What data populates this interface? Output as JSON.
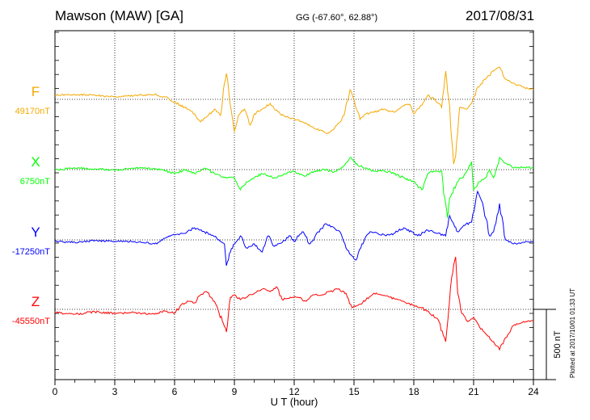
{
  "header": {
    "station": "Mawson (MAW)  [GA]",
    "coords": "GG (-67.60°,  62.88°)",
    "date": "2017/08/31"
  },
  "plotted_note": "Plotted at 2017/10/01 01:33 UT",
  "scale_label": "500 nT",
  "chart_data": {
    "type": "line",
    "xlabel": "U T (hour)",
    "xlim": [
      0,
      24
    ],
    "xticks": [
      0,
      3,
      6,
      9,
      12,
      15,
      18,
      21,
      24
    ],
    "grid": true,
    "series": [
      {
        "name": "F",
        "baseline": "49170nT",
        "color": "#f5a800",
        "points": [
          [
            0,
            5
          ],
          [
            1,
            6
          ],
          [
            2,
            5
          ],
          [
            3,
            3
          ],
          [
            4,
            5
          ],
          [
            5,
            6
          ],
          [
            5.5,
            3
          ],
          [
            6,
            -3
          ],
          [
            6.5,
            -10
          ],
          [
            7,
            -18
          ],
          [
            7.3,
            -28
          ],
          [
            7.6,
            -22
          ],
          [
            8,
            -12
          ],
          [
            8.3,
            -20
          ],
          [
            8.5,
            20
          ],
          [
            8.6,
            32
          ],
          [
            8.8,
            -8
          ],
          [
            9,
            -40
          ],
          [
            9.2,
            -20
          ],
          [
            9.5,
            -12
          ],
          [
            9.8,
            -32
          ],
          [
            10,
            -18
          ],
          [
            10.4,
            -12
          ],
          [
            10.8,
            -5
          ],
          [
            11,
            -12
          ],
          [
            11.3,
            -18
          ],
          [
            11.6,
            -22
          ],
          [
            12,
            -24
          ],
          [
            12.4,
            -28
          ],
          [
            12.7,
            -32
          ],
          [
            13,
            -36
          ],
          [
            13.3,
            -38
          ],
          [
            13.6,
            -42
          ],
          [
            13.9,
            -38
          ],
          [
            14.2,
            -30
          ],
          [
            14.5,
            -20
          ],
          [
            14.8,
            12
          ],
          [
            15,
            0
          ],
          [
            15.3,
            -25
          ],
          [
            15.6,
            -18
          ],
          [
            16,
            -16
          ],
          [
            16.5,
            -12
          ],
          [
            17,
            -16
          ],
          [
            17.5,
            -8
          ],
          [
            17.8,
            -6
          ],
          [
            18,
            -18
          ],
          [
            18.3,
            -10
          ],
          [
            18.7,
            5
          ],
          [
            19.1,
            -2
          ],
          [
            19.4,
            -10
          ],
          [
            19.6,
            35
          ],
          [
            19.8,
            -10
          ],
          [
            19.9,
            -50
          ],
          [
            20,
            -80
          ],
          [
            20.1,
            -70
          ],
          [
            20.3,
            -10
          ],
          [
            20.6,
            -12
          ],
          [
            20.9,
            -5
          ],
          [
            21.2,
            15
          ],
          [
            21.6,
            25
          ],
          [
            22,
            35
          ],
          [
            22.3,
            40
          ],
          [
            22.6,
            25
          ],
          [
            23,
            20
          ],
          [
            23.5,
            15
          ],
          [
            24,
            12
          ]
        ]
      },
      {
        "name": "X",
        "baseline": "6750nT",
        "color": "#00ff00",
        "points": [
          [
            0,
            0
          ],
          [
            1,
            2
          ],
          [
            2,
            1
          ],
          [
            3,
            -1
          ],
          [
            4,
            2
          ],
          [
            5,
            1
          ],
          [
            5.5,
            -1
          ],
          [
            6,
            -5
          ],
          [
            6.5,
            0
          ],
          [
            7,
            -5
          ],
          [
            7.5,
            2
          ],
          [
            8,
            -5
          ],
          [
            8.5,
            -10
          ],
          [
            9,
            -10
          ],
          [
            9.3,
            -25
          ],
          [
            9.6,
            -15
          ],
          [
            10,
            -10
          ],
          [
            10.4,
            -5
          ],
          [
            11,
            -10
          ],
          [
            11.5,
            -5
          ],
          [
            12,
            -2
          ],
          [
            12.5,
            -8
          ],
          [
            13,
            -2
          ],
          [
            13.5,
            0
          ],
          [
            14,
            -3
          ],
          [
            14.5,
            5
          ],
          [
            14.8,
            15
          ],
          [
            15.2,
            5
          ],
          [
            15.6,
            2
          ],
          [
            16,
            -2
          ],
          [
            16.5,
            -1
          ],
          [
            17,
            -5
          ],
          [
            17.5,
            -10
          ],
          [
            18,
            -15
          ],
          [
            18.4,
            -25
          ],
          [
            18.7,
            -5
          ],
          [
            19,
            -2
          ],
          [
            19.4,
            -2
          ],
          [
            19.5,
            -30
          ],
          [
            19.7,
            -60
          ],
          [
            19.8,
            -35
          ],
          [
            19.9,
            -30
          ],
          [
            20.2,
            -15
          ],
          [
            20.6,
            -5
          ],
          [
            20.9,
            10
          ],
          [
            21,
            -25
          ],
          [
            21.3,
            -15
          ],
          [
            21.6,
            -10
          ],
          [
            21.8,
            0
          ],
          [
            22,
            -10
          ],
          [
            22.3,
            15
          ],
          [
            22.6,
            8
          ],
          [
            23,
            2
          ],
          [
            23.5,
            3
          ],
          [
            24,
            2
          ]
        ]
      },
      {
        "name": "Y",
        "baseline": "-17250nT",
        "color": "#0000ff",
        "points": [
          [
            0,
            -2
          ],
          [
            1,
            -3
          ],
          [
            2,
            -1
          ],
          [
            3,
            -2
          ],
          [
            4,
            -2
          ],
          [
            5,
            -5
          ],
          [
            5.5,
            2
          ],
          [
            6,
            6
          ],
          [
            6.5,
            8
          ],
          [
            7,
            15
          ],
          [
            7.5,
            10
          ],
          [
            8,
            4
          ],
          [
            8.5,
            -5
          ],
          [
            8.6,
            -32
          ],
          [
            8.8,
            -15
          ],
          [
            9,
            -5
          ],
          [
            9.3,
            5
          ],
          [
            9.6,
            -10
          ],
          [
            10,
            -5
          ],
          [
            10.4,
            -15
          ],
          [
            10.7,
            5
          ],
          [
            11,
            -8
          ],
          [
            11.4,
            -3
          ],
          [
            11.8,
            5
          ],
          [
            12,
            -2
          ],
          [
            12.4,
            10
          ],
          [
            12.8,
            -5
          ],
          [
            13.2,
            10
          ],
          [
            13.6,
            20
          ],
          [
            14,
            15
          ],
          [
            14.3,
            10
          ],
          [
            14.6,
            -10
          ],
          [
            14.9,
            -20
          ],
          [
            15.1,
            -25
          ],
          [
            15.4,
            -5
          ],
          [
            15.8,
            10
          ],
          [
            16.2,
            8
          ],
          [
            16.6,
            5
          ],
          [
            17,
            8
          ],
          [
            17.5,
            15
          ],
          [
            17.9,
            10
          ],
          [
            18.2,
            5
          ],
          [
            18.7,
            12
          ],
          [
            19.2,
            8
          ],
          [
            19.6,
            5
          ],
          [
            19.8,
            30
          ],
          [
            20,
            20
          ],
          [
            20.2,
            10
          ],
          [
            20.5,
            18
          ],
          [
            20.9,
            22
          ],
          [
            21.2,
            60
          ],
          [
            21.5,
            40
          ],
          [
            21.8,
            5
          ],
          [
            22,
            10
          ],
          [
            22.3,
            45
          ],
          [
            22.6,
            0
          ],
          [
            23,
            -5
          ],
          [
            23.5,
            -3
          ],
          [
            24,
            -2
          ]
        ]
      },
      {
        "name": "Z",
        "baseline": "-45550nT",
        "color": "#ff0000",
        "points": [
          [
            0,
            -4
          ],
          [
            1,
            -6
          ],
          [
            2,
            -3
          ],
          [
            3,
            -5
          ],
          [
            4,
            -4
          ],
          [
            5,
            -6
          ],
          [
            5.5,
            -2
          ],
          [
            6,
            -5
          ],
          [
            6.3,
            5
          ],
          [
            6.7,
            10
          ],
          [
            7,
            8
          ],
          [
            7.3,
            18
          ],
          [
            7.6,
            22
          ],
          [
            8,
            10
          ],
          [
            8.4,
            -15
          ],
          [
            8.6,
            -28
          ],
          [
            8.8,
            15
          ],
          [
            9,
            18
          ],
          [
            9.3,
            12
          ],
          [
            9.6,
            15
          ],
          [
            10,
            20
          ],
          [
            10.4,
            25
          ],
          [
            10.8,
            22
          ],
          [
            11.1,
            28
          ],
          [
            11.4,
            12
          ],
          [
            11.8,
            15
          ],
          [
            12.2,
            15
          ],
          [
            12.6,
            10
          ],
          [
            13,
            18
          ],
          [
            13.4,
            18
          ],
          [
            13.8,
            22
          ],
          [
            14.2,
            25
          ],
          [
            14.6,
            20
          ],
          [
            14.9,
            2
          ],
          [
            15.2,
            5
          ],
          [
            15.6,
            12
          ],
          [
            16,
            20
          ],
          [
            16.4,
            18
          ],
          [
            16.8,
            15
          ],
          [
            17.2,
            12
          ],
          [
            17.6,
            8
          ],
          [
            18,
            5
          ],
          [
            18.4,
            2
          ],
          [
            18.8,
            -5
          ],
          [
            19.2,
            -12
          ],
          [
            19.6,
            -40
          ],
          [
            19.9,
            40
          ],
          [
            20.1,
            65
          ],
          [
            20.2,
            20
          ],
          [
            20.4,
            -5
          ],
          [
            20.7,
            -15
          ],
          [
            21,
            -10
          ],
          [
            21.3,
            -22
          ],
          [
            21.6,
            -30
          ],
          [
            22,
            -40
          ],
          [
            22.3,
            -50
          ],
          [
            22.6,
            -35
          ],
          [
            23,
            -20
          ],
          [
            23.5,
            -15
          ],
          [
            24,
            -14
          ]
        ]
      }
    ]
  }
}
